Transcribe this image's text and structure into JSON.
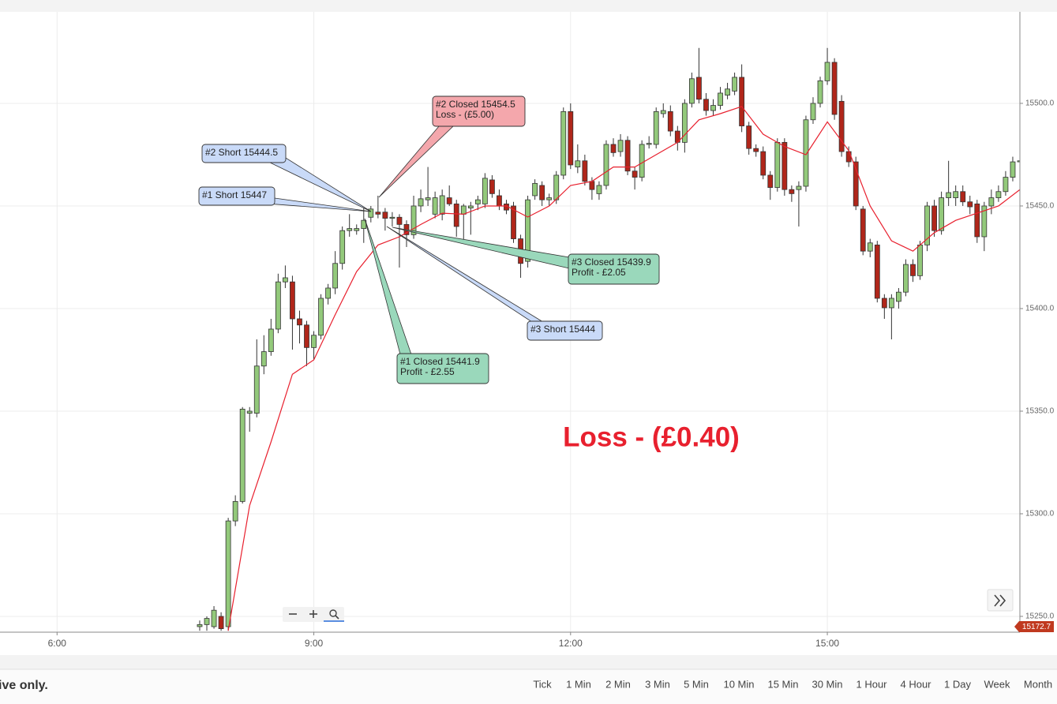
{
  "chart_data": {
    "type": "candlestick",
    "up_color": "#93c97b",
    "down_color": "#b0261a",
    "xlim": [
      "5:20",
      "17:15"
    ],
    "xticks": [
      "6:00",
      "9:00",
      "12:00",
      "15:00"
    ],
    "ylim": [
      15242.3,
      15544.6
    ],
    "yticks": [
      {
        "value": 15250,
        "label": "15250.0"
      },
      {
        "value": 15300,
        "label": "15300.0"
      },
      {
        "value": 15350,
        "label": "15350.0"
      },
      {
        "value": 15400,
        "label": "15400.0"
      },
      {
        "value": 15450,
        "label": "15450.0"
      },
      {
        "value": 15500,
        "label": "15500.0"
      }
    ],
    "grid": true,
    "candles": [
      {
        "x": "7:40",
        "open": 15245,
        "high": 15248,
        "low": 15243,
        "close": 15246
      },
      {
        "x": "7:45",
        "open": 15246,
        "high": 15250,
        "low": 15243,
        "close": 15249
      },
      {
        "x": "7:50",
        "open": 15245,
        "high": 15255,
        "low": 15244,
        "close": 15253
      },
      {
        "x": "7:55",
        "open": 15250,
        "high": 15252,
        "low": 15243,
        "close": 15244
      },
      {
        "x": "8:00",
        "open": 15245,
        "high": 15298,
        "low": 15243,
        "close": 15296.5
      },
      {
        "x": "8:05",
        "open": 15296.5,
        "high": 15309,
        "low": 15294,
        "close": 15306
      },
      {
        "x": "8:10",
        "open": 15306,
        "high": 15352,
        "low": 15305,
        "close": 15351
      },
      {
        "x": "8:15",
        "open": 15349,
        "high": 15352,
        "low": 15340,
        "close": 15350
      },
      {
        "x": "8:20",
        "open": 15349,
        "high": 15385,
        "low": 15347,
        "close": 15372
      },
      {
        "x": "8:25",
        "open": 15372,
        "high": 15387,
        "low": 15368,
        "close": 15379
      },
      {
        "x": "8:30",
        "open": 15379,
        "high": 15395,
        "low": 15377,
        "close": 15390
      },
      {
        "x": "8:35",
        "open": 15390,
        "high": 15417,
        "low": 15388,
        "close": 15413
      },
      {
        "x": "8:40",
        "open": 15413,
        "high": 15421,
        "low": 15410,
        "close": 15415
      },
      {
        "x": "8:45",
        "open": 15413,
        "high": 15416,
        "low": 15380,
        "close": 15395
      },
      {
        "x": "8:50",
        "open": 15395,
        "high": 15399,
        "low": 15383,
        "close": 15392
      },
      {
        "x": "8:55",
        "open": 15392,
        "high": 15394,
        "low": 15372,
        "close": 15381
      },
      {
        "x": "9:00",
        "open": 15381,
        "high": 15389,
        "low": 15375,
        "close": 15387
      },
      {
        "x": "9:05",
        "open": 15387,
        "high": 15407,
        "low": 15385,
        "close": 15405
      },
      {
        "x": "9:10",
        "open": 15405,
        "high": 15412,
        "low": 15402,
        "close": 15410
      },
      {
        "x": "9:15",
        "open": 15410,
        "high": 15428,
        "low": 15407,
        "close": 15422
      },
      {
        "x": "9:20",
        "open": 15422,
        "high": 15440,
        "low": 15419,
        "close": 15438
      },
      {
        "x": "9:25",
        "open": 15438,
        "high": 15446,
        "low": 15435,
        "close": 15439
      },
      {
        "x": "9:30",
        "open": 15438,
        "high": 15441,
        "low": 15436,
        "close": 15439
      },
      {
        "x": "9:35",
        "open": 15439,
        "high": 15449,
        "low": 15432,
        "close": 15443
      },
      {
        "x": "9:40",
        "open": 15444.5,
        "high": 15450,
        "low": 15442,
        "close": 15448.5
      },
      {
        "x": "9:45",
        "open": 15447,
        "high": 15455,
        "low": 15444,
        "close": 15446
      },
      {
        "x": "9:50",
        "open": 15447,
        "high": 15449,
        "low": 15438,
        "close": 15444
      },
      {
        "x": "9:55",
        "open": 15444,
        "high": 15447,
        "low": 15440,
        "close": 15444.5
      },
      {
        "x": "10:00",
        "open": 15444.5,
        "high": 15446,
        "low": 15420,
        "close": 15441
      },
      {
        "x": "10:05",
        "open": 15441,
        "high": 15443,
        "low": 15430,
        "close": 15436
      },
      {
        "x": "10:10",
        "open": 15436,
        "high": 15455,
        "low": 15434,
        "close": 15450
      },
      {
        "x": "10:15",
        "open": 15450,
        "high": 15458,
        "low": 15447,
        "close": 15453.5
      },
      {
        "x": "10:20",
        "open": 15453,
        "high": 15469,
        "low": 15450,
        "close": 15454
      },
      {
        "x": "10:25",
        "open": 15446,
        "high": 15457,
        "low": 15444,
        "close": 15454
      },
      {
        "x": "10:30",
        "open": 15446,
        "high": 15458,
        "low": 15443,
        "close": 15455
      },
      {
        "x": "10:35",
        "open": 15454,
        "high": 15460,
        "low": 15450,
        "close": 15451
      },
      {
        "x": "10:40",
        "open": 15451,
        "high": 15453,
        "low": 15435,
        "close": 15440
      },
      {
        "x": "10:45",
        "open": 15446,
        "high": 15451,
        "low": 15432,
        "close": 15450
      },
      {
        "x": "10:50",
        "open": 15449,
        "high": 15452,
        "low": 15436,
        "close": 15450
      },
      {
        "x": "10:55",
        "open": 15451,
        "high": 15455,
        "low": 15448,
        "close": 15453
      },
      {
        "x": "11:00",
        "open": 15451,
        "high": 15466,
        "low": 15449,
        "close": 15463.5
      },
      {
        "x": "11:05",
        "open": 15462.7,
        "high": 15465,
        "low": 15454,
        "close": 15456
      },
      {
        "x": "11:10",
        "open": 15455,
        "high": 15458,
        "low": 15448,
        "close": 15450
      },
      {
        "x": "11:15",
        "open": 15451,
        "high": 15453,
        "low": 15446,
        "close": 15448
      },
      {
        "x": "11:20",
        "open": 15450,
        "high": 15452,
        "low": 15432,
        "close": 15434
      },
      {
        "x": "11:25",
        "open": 15434,
        "high": 15436,
        "low": 15415,
        "close": 15422
      },
      {
        "x": "11:30",
        "open": 15423,
        "high": 15455,
        "low": 15420,
        "close": 15453
      },
      {
        "x": "11:35",
        "open": 15455,
        "high": 15463,
        "low": 15453,
        "close": 15461
      },
      {
        "x": "11:40",
        "open": 15460,
        "high": 15462,
        "low": 15450,
        "close": 15453
      },
      {
        "x": "11:45",
        "open": 15453,
        "high": 15456,
        "low": 15450,
        "close": 15454
      },
      {
        "x": "11:50",
        "open": 15453,
        "high": 15467,
        "low": 15451,
        "close": 15465
      },
      {
        "x": "11:55",
        "open": 15465,
        "high": 15498,
        "low": 15463,
        "close": 15496
      },
      {
        "x": "12:00",
        "open": 15496,
        "high": 15500,
        "low": 15468,
        "close": 15470
      },
      {
        "x": "12:05",
        "open": 15469,
        "high": 15480,
        "low": 15466,
        "close": 15472
      },
      {
        "x": "12:10",
        "open": 15472,
        "high": 15475,
        "low": 15460,
        "close": 15462
      },
      {
        "x": "12:15",
        "open": 15462,
        "high": 15464,
        "low": 15453,
        "close": 15458
      },
      {
        "x": "12:20",
        "open": 15456,
        "high": 15462,
        "low": 15453,
        "close": 15460
      },
      {
        "x": "12:25",
        "open": 15460,
        "high": 15482,
        "low": 15458,
        "close": 15480
      },
      {
        "x": "12:30",
        "open": 15480,
        "high": 15483,
        "low": 15474,
        "close": 15476
      },
      {
        "x": "12:35",
        "open": 15476.5,
        "high": 15485,
        "low": 15474,
        "close": 15482
      },
      {
        "x": "12:40",
        "open": 15482,
        "high": 15484,
        "low": 15465,
        "close": 15467
      },
      {
        "x": "12:45",
        "open": 15467,
        "high": 15469,
        "low": 15458,
        "close": 15464
      },
      {
        "x": "12:50",
        "open": 15464,
        "high": 15482,
        "low": 15462,
        "close": 15480
      },
      {
        "x": "12:55",
        "open": 15480,
        "high": 15484,
        "low": 15478,
        "close": 15480.5
      },
      {
        "x": "13:00",
        "open": 15480,
        "high": 15498,
        "low": 15478,
        "close": 15496
      },
      {
        "x": "13:05",
        "open": 15495,
        "high": 15500,
        "low": 15493,
        "close": 15496.5
      },
      {
        "x": "13:10",
        "open": 15496,
        "high": 15499,
        "low": 15484,
        "close": 15486.5
      },
      {
        "x": "13:15",
        "open": 15486.5,
        "high": 15489,
        "low": 15477,
        "close": 15481
      },
      {
        "x": "13:20",
        "open": 15481,
        "high": 15502,
        "low": 15476,
        "close": 15500
      },
      {
        "x": "13:25",
        "open": 15500,
        "high": 15515,
        "low": 15498,
        "close": 15512
      },
      {
        "x": "13:30",
        "open": 15512.7,
        "high": 15527,
        "low": 15500,
        "close": 15502
      },
      {
        "x": "13:35",
        "open": 15502,
        "high": 15505,
        "low": 15494,
        "close": 15496.5
      },
      {
        "x": "13:40",
        "open": 15496.5,
        "high": 15502,
        "low": 15494,
        "close": 15499
      },
      {
        "x": "13:45",
        "open": 15499,
        "high": 15508,
        "low": 15497,
        "close": 15505
      },
      {
        "x": "13:50",
        "open": 15504,
        "high": 15510,
        "low": 15502,
        "close": 15507
      },
      {
        "x": "13:55",
        "open": 15506,
        "high": 15515,
        "low": 15504,
        "close": 15512.7
      },
      {
        "x": "14:00",
        "open": 15512.7,
        "high": 15519,
        "low": 15486,
        "close": 15489
      },
      {
        "x": "14:05",
        "open": 15489,
        "high": 15491,
        "low": 15475,
        "close": 15478
      },
      {
        "x": "14:10",
        "open": 15478,
        "high": 15480,
        "low": 15474,
        "close": 15476.5
      },
      {
        "x": "14:15",
        "open": 15476.5,
        "high": 15479,
        "low": 15463,
        "close": 15465
      },
      {
        "x": "14:20",
        "open": 15465,
        "high": 15467,
        "low": 15453,
        "close": 15459
      },
      {
        "x": "14:25",
        "open": 15459,
        "high": 15483,
        "low": 15457,
        "close": 15481
      },
      {
        "x": "14:30",
        "open": 15481,
        "high": 15483,
        "low": 15455,
        "close": 15458
      },
      {
        "x": "14:35",
        "open": 15458,
        "high": 15460,
        "low": 15452,
        "close": 15456
      },
      {
        "x": "14:40",
        "open": 15458,
        "high": 15462,
        "low": 15440,
        "close": 15459.6
      },
      {
        "x": "14:45",
        "open": 15459.6,
        "high": 15494,
        "low": 15457,
        "close": 15492
      },
      {
        "x": "14:50",
        "open": 15492,
        "high": 15503,
        "low": 15490,
        "close": 15500
      },
      {
        "x": "14:55",
        "open": 15500,
        "high": 15513,
        "low": 15498,
        "close": 15511
      },
      {
        "x": "15:00",
        "open": 15511,
        "high": 15527,
        "low": 15509,
        "close": 15520
      },
      {
        "x": "15:05",
        "open": 15520,
        "high": 15522,
        "low": 15492,
        "close": 15494.6
      },
      {
        "x": "15:10",
        "open": 15501,
        "high": 15504,
        "low": 15474,
        "close": 15476.5
      },
      {
        "x": "15:15",
        "open": 15476.5,
        "high": 15479,
        "low": 15469,
        "close": 15471.5
      },
      {
        "x": "15:20",
        "open": 15471.5,
        "high": 15474,
        "low": 15448,
        "close": 15450
      },
      {
        "x": "15:25",
        "open": 15448.5,
        "high": 15450,
        "low": 15426,
        "close": 15428
      },
      {
        "x": "15:30",
        "open": 15428,
        "high": 15434,
        "low": 15425,
        "close": 15432
      },
      {
        "x": "15:35",
        "open": 15431,
        "high": 15433,
        "low": 15403,
        "close": 15405
      },
      {
        "x": "15:40",
        "open": 15405,
        "high": 15407,
        "low": 15395,
        "close": 15400.4
      },
      {
        "x": "15:45",
        "open": 15400.4,
        "high": 15407,
        "low": 15385,
        "close": 15405
      },
      {
        "x": "15:50",
        "open": 15403.5,
        "high": 15410,
        "low": 15400,
        "close": 15408
      },
      {
        "x": "15:55",
        "open": 15408,
        "high": 15424,
        "low": 15406,
        "close": 15421.5
      },
      {
        "x": "16:00",
        "open": 15421.5,
        "high": 15424,
        "low": 15413,
        "close": 15416
      },
      {
        "x": "16:05",
        "open": 15416,
        "high": 15433,
        "low": 15414,
        "close": 15431
      },
      {
        "x": "16:10",
        "open": 15431,
        "high": 15452,
        "low": 15428,
        "close": 15450
      },
      {
        "x": "16:15",
        "open": 15450,
        "high": 15453,
        "low": 15435,
        "close": 15438
      },
      {
        "x": "16:20",
        "open": 15438,
        "high": 15457,
        "low": 15436,
        "close": 15454
      },
      {
        "x": "16:25",
        "open": 15454,
        "high": 15472,
        "low": 15450,
        "close": 15456.5
      },
      {
        "x": "16:30",
        "open": 15454,
        "high": 15460,
        "low": 15450,
        "close": 15457
      },
      {
        "x": "16:35",
        "open": 15457,
        "high": 15460,
        "low": 15450,
        "close": 15452
      },
      {
        "x": "16:40",
        "open": 15452,
        "high": 15455,
        "low": 15446,
        "close": 15449.6
      },
      {
        "x": "16:45",
        "open": 15451,
        "high": 15453,
        "low": 15432,
        "close": 15435
      },
      {
        "x": "16:50",
        "open": 15435,
        "high": 15452,
        "low": 15428,
        "close": 15450
      },
      {
        "x": "16:55",
        "open": 15450,
        "high": 15458,
        "low": 15446,
        "close": 15454
      },
      {
        "x": "17:00",
        "open": 15454,
        "high": 15460,
        "low": 15452,
        "close": 15457
      },
      {
        "x": "17:05",
        "open": 15457,
        "high": 15467,
        "low": 15455,
        "close": 15464
      },
      {
        "x": "17:10",
        "open": 15464,
        "high": 15474,
        "low": 15462,
        "close": 15471.5
      },
      {
        "x": "17:15",
        "open": 15471.5,
        "high": 15479,
        "low": 15469,
        "close": 15472
      }
    ],
    "ma": {
      "color": "#e8202e",
      "x": [
        "8:00",
        "8:15",
        "8:30",
        "8:45",
        "9:00",
        "9:15",
        "9:30",
        "9:45",
        "10:00",
        "10:15",
        "10:30",
        "10:45",
        "11:00",
        "11:15",
        "11:30",
        "11:45",
        "12:00",
        "12:15",
        "12:30",
        "12:45",
        "13:00",
        "13:15",
        "13:30",
        "13:45",
        "14:00",
        "14:15",
        "14:30",
        "14:45",
        "15:00",
        "15:15",
        "15:30",
        "15:45",
        "16:00",
        "16:15",
        "16:30",
        "16:45",
        "17:00",
        "17:15"
      ],
      "values": [
        15243,
        15304,
        15335,
        15368,
        15375,
        15397,
        15418,
        15431,
        15435,
        15441,
        15446.5,
        15446,
        15450,
        15450,
        15444.6,
        15450,
        15460,
        15462,
        15469,
        15469,
        15475,
        15481,
        15492,
        15495,
        15498.5,
        15485,
        15479,
        15475,
        15491,
        15477,
        15450,
        15433,
        15428,
        15437,
        15443,
        15446.5,
        15450,
        15458
      ]
    },
    "last_price": 15172.7,
    "last_price_color": "#c0391f",
    "annotations": [
      {
        "lines": [
          "#2 Short 15444.5"
        ],
        "color": "#c9daf8"
      },
      {
        "lines": [
          "#1 Short 15447"
        ],
        "color": "#c9daf8"
      },
      {
        "lines": [
          "#2 Closed 15454.5",
          "Loss - (£5.00)"
        ],
        "color": "#f4a7ac"
      },
      {
        "lines": [
          "#3 Closed 15439.9",
          "Profit - £2.05"
        ],
        "color": "#9ad8bb"
      },
      {
        "lines": [
          "#3 Short 15444"
        ],
        "color": "#c9daf8"
      },
      {
        "lines": [
          "#1 Closed 15441.9",
          "Profit - £2.55"
        ],
        "color": "#9ad8bb"
      }
    ],
    "summary": {
      "text": "Loss - (£0.40)",
      "color": "#e8202e"
    }
  },
  "toolbar": {
    "disclaimer": "ive only.",
    "timeframes": [
      "Tick",
      "1 Min",
      "2 Min",
      "3 Min",
      "5 Min",
      "10 Min",
      "15 Min",
      "30 Min",
      "1 Hour",
      "4 Hour",
      "1 Day",
      "Week",
      "Month"
    ]
  }
}
